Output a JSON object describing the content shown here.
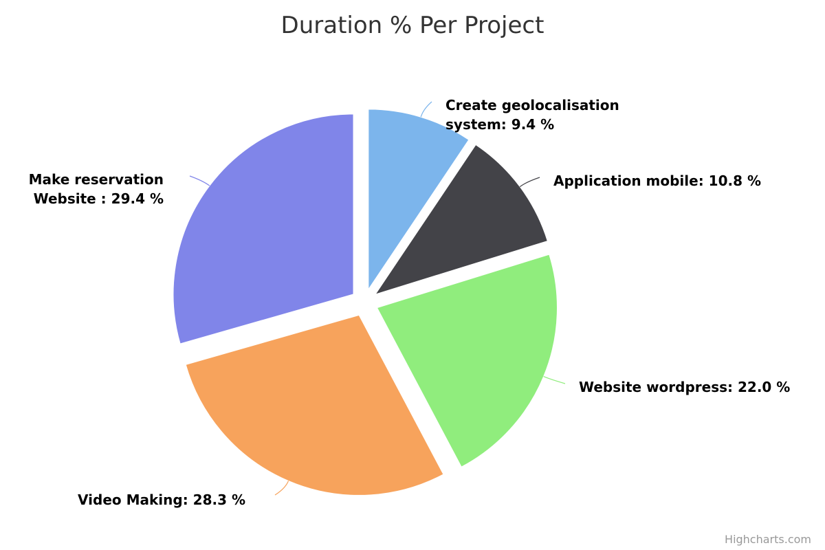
{
  "chart_data": {
    "type": "pie",
    "title": "Duration % Per Project",
    "value_unit": "%",
    "slices": [
      {
        "name": "Create geolocalisation system",
        "label_lines": [
          "Create geolocalisation",
          "system: 9.4 %"
        ],
        "value": 9.4,
        "color": "#7cb5ec"
      },
      {
        "name": "Application mobile",
        "label_lines": [
          "Application mobile: 10.8 %"
        ],
        "value": 10.8,
        "color": "#434348"
      },
      {
        "name": "Website wordpress",
        "label_lines": [
          "Website wordpress: 22.0 %"
        ],
        "value": 22.0,
        "color": "#90ed7d"
      },
      {
        "name": "Video Making",
        "label_lines": [
          "Video Making: 28.3 %"
        ],
        "value": 28.3,
        "color": "#f7a35c"
      },
      {
        "name": "Make reservation Website ",
        "label_lines": [
          "Make reservation",
          "Website : 29.4 %"
        ],
        "value": 29.4,
        "color": "#8085e9"
      }
    ],
    "start_angle_deg": 0,
    "sliced": true,
    "legend": "none"
  },
  "credits": "Highcharts.com"
}
